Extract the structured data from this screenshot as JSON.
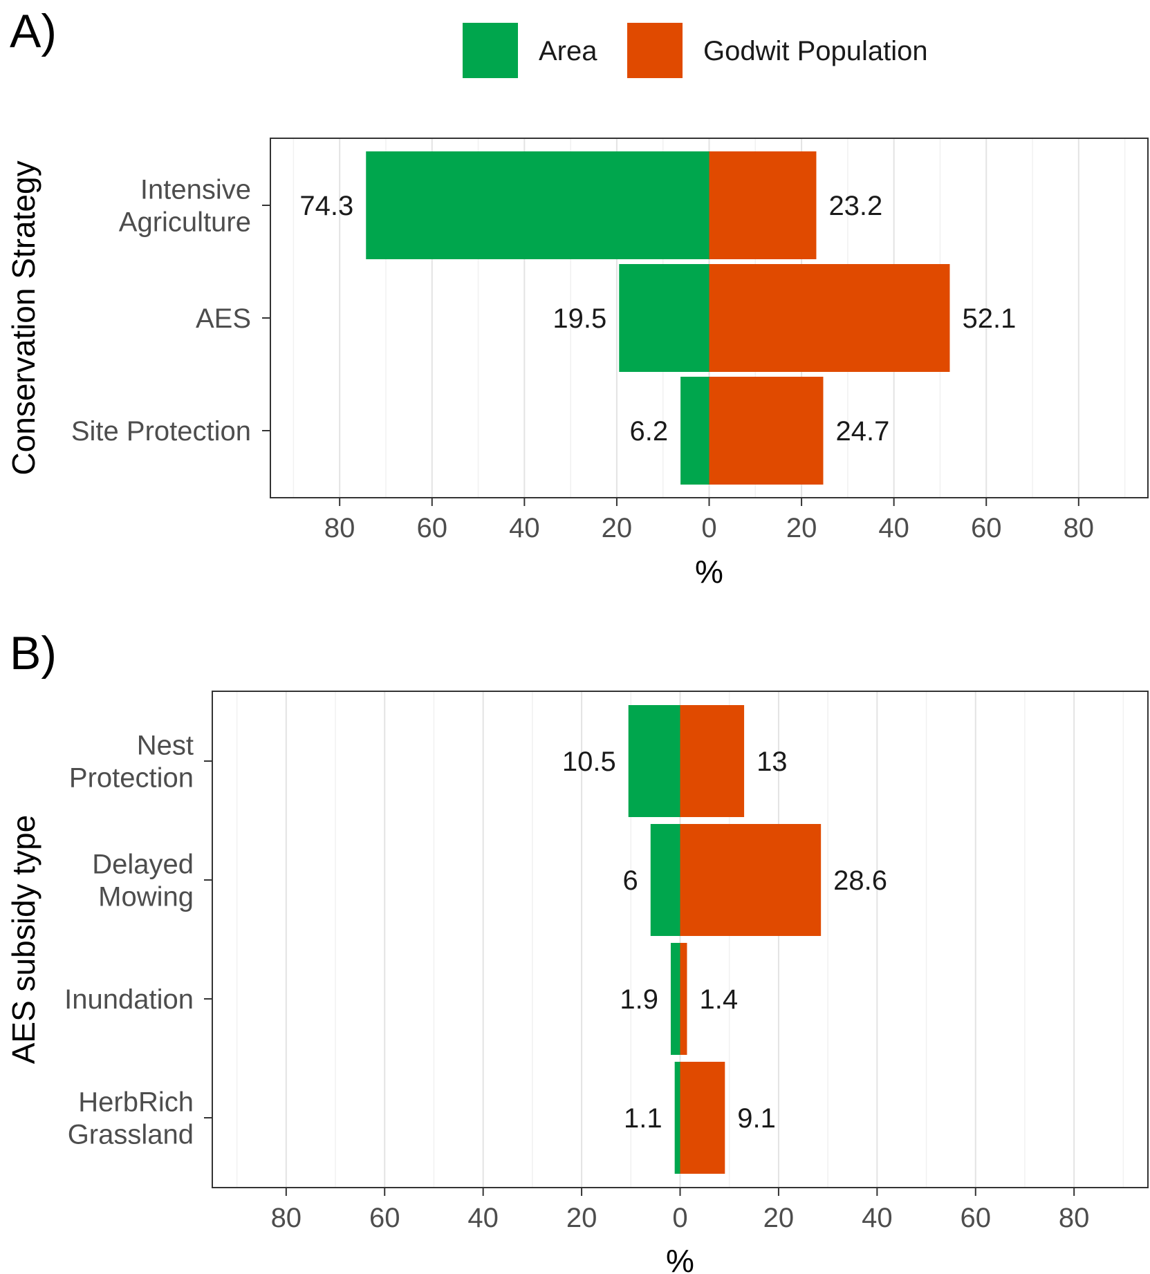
{
  "legend": {
    "position": "top",
    "items": [
      {
        "label": "Area",
        "color": "#00A64D"
      },
      {
        "label": "Godwit Population",
        "color": "#E04A00"
      }
    ]
  },
  "chart_data": [
    {
      "panel_label": "A)",
      "type": "bar",
      "orientation": "horizontal",
      "layout": "diverging",
      "ylabel": "Conservation Strategy",
      "xlabel": "%",
      "xlim": [
        -95,
        95
      ],
      "xticks": [
        -80,
        -60,
        -40,
        -20,
        0,
        20,
        40,
        60,
        80
      ],
      "xtick_labels": [
        "80",
        "60",
        "40",
        "20",
        "0",
        "20",
        "40",
        "60",
        "80"
      ],
      "grid": true,
      "categories": [
        [
          "Intensive",
          "Agriculture"
        ],
        [
          "AES"
        ],
        [
          "Site Protection"
        ]
      ],
      "series": [
        {
          "name": "Area",
          "side": "left",
          "color": "#00A64D",
          "values": [
            74.3,
            19.5,
            6.2
          ],
          "labels": [
            "74.3",
            "19.5",
            "6.2"
          ]
        },
        {
          "name": "Godwit Population",
          "side": "right",
          "color": "#E04A00",
          "values": [
            23.2,
            52.1,
            24.7
          ],
          "labels": [
            "23.2",
            "52.1",
            "24.7"
          ]
        }
      ]
    },
    {
      "panel_label": "B)",
      "type": "bar",
      "orientation": "horizontal",
      "layout": "diverging",
      "ylabel": "AES subsidy type",
      "xlabel": "%",
      "xlim": [
        -95,
        95
      ],
      "xticks": [
        -80,
        -60,
        -40,
        -20,
        0,
        20,
        40,
        60,
        80
      ],
      "xtick_labels": [
        "80",
        "60",
        "40",
        "20",
        "0",
        "20",
        "40",
        "60",
        "80"
      ],
      "grid": true,
      "categories": [
        [
          "Nest",
          "Protection"
        ],
        [
          "Delayed",
          "Mowing"
        ],
        [
          "Inundation"
        ],
        [
          "HerbRich",
          "Grassland"
        ]
      ],
      "series": [
        {
          "name": "Area",
          "side": "left",
          "color": "#00A64D",
          "values": [
            10.5,
            6,
            1.9,
            1.1
          ],
          "labels": [
            "10.5",
            "6",
            "1.9",
            "1.1"
          ]
        },
        {
          "name": "Godwit Population",
          "side": "right",
          "color": "#E04A00",
          "values": [
            13,
            28.6,
            1.4,
            9.1
          ],
          "labels": [
            "13",
            "28.6",
            "1.4",
            "9.1"
          ]
        }
      ]
    }
  ]
}
